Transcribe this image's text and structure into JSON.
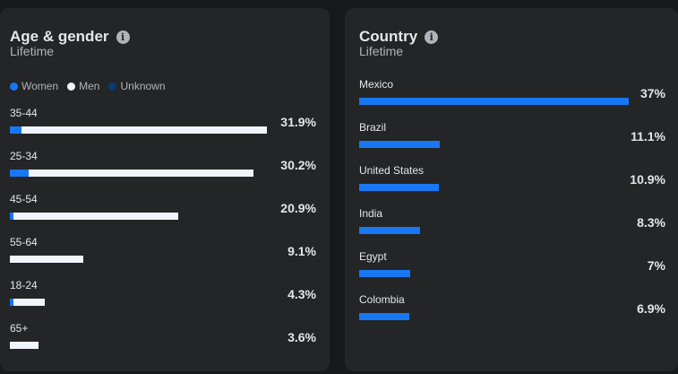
{
  "colors": {
    "women": "#1877f2",
    "men": "#f0f4fb",
    "unknown": "#0a3a78",
    "country_bar": "#1877f2"
  },
  "age_gender": {
    "title": "Age & gender",
    "subtitle": "Lifetime",
    "info_icon": "info-icon",
    "legend": [
      "Women",
      "Men",
      "Unknown"
    ],
    "rows": [
      {
        "label": "35-44",
        "value": "31.9%",
        "women_pct": 1.4,
        "men_pct": 30.5
      },
      {
        "label": "25-34",
        "value": "30.2%",
        "women_pct": 2.3,
        "men_pct": 27.9
      },
      {
        "label": "45-54",
        "value": "20.9%",
        "women_pct": 0.5,
        "men_pct": 20.4
      },
      {
        "label": "55-64",
        "value": "9.1%",
        "women_pct": 0,
        "men_pct": 9.1
      },
      {
        "label": "18-24",
        "value": "4.3%",
        "women_pct": 0.5,
        "men_pct": 3.8
      },
      {
        "label": "65+",
        "value": "3.6%",
        "women_pct": 0,
        "men_pct": 3.6
      }
    ]
  },
  "country": {
    "title": "Country",
    "subtitle": "Lifetime",
    "info_icon": "info-icon",
    "rows": [
      {
        "label": "Mexico",
        "value": "37%",
        "pct": 37
      },
      {
        "label": "Brazil",
        "value": "11.1%",
        "pct": 11.1
      },
      {
        "label": "United States",
        "value": "10.9%",
        "pct": 10.9
      },
      {
        "label": "India",
        "value": "8.3%",
        "pct": 8.3
      },
      {
        "label": "Egypt",
        "value": "7%",
        "pct": 7
      },
      {
        "label": "Colombia",
        "value": "6.9%",
        "pct": 6.9
      }
    ]
  }
}
